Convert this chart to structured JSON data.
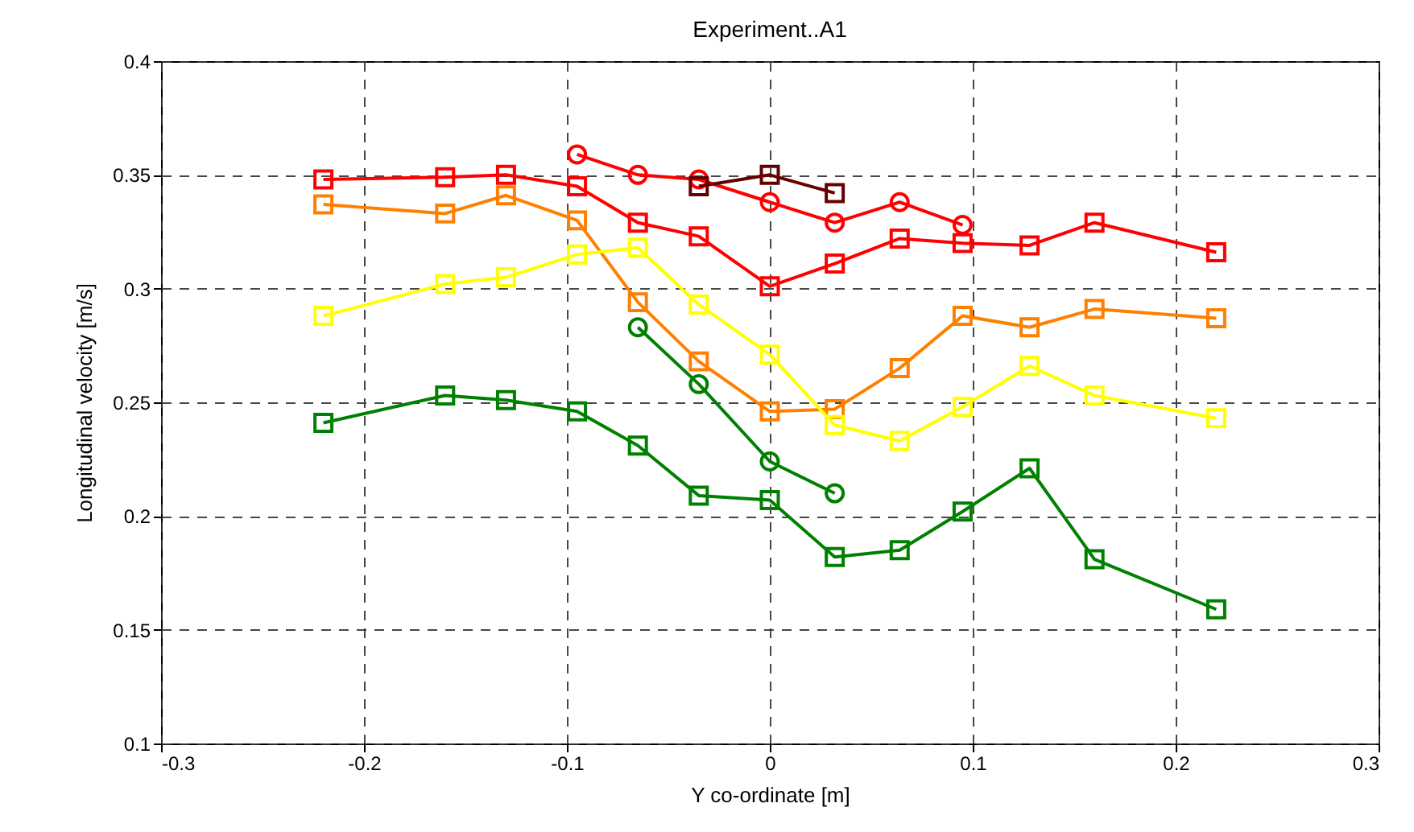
{
  "chart_data": {
    "type": "line",
    "title": "Experiment..A1",
    "xlabel": "Y co-ordinate [m]",
    "ylabel": "Longitudinal velocity [m/s]",
    "xlim": [
      -0.3,
      0.3
    ],
    "xticks": [
      -0.3,
      -0.2,
      -0.1,
      0,
      0.1,
      0.2,
      0.3
    ],
    "ylim": [
      0.1,
      0.4
    ],
    "yticks": [
      0.1,
      0.15,
      0.2,
      0.25,
      0.3,
      0.35,
      0.4
    ],
    "grid": true,
    "line_style": "solid",
    "series": [
      {
        "color": "#ff0000",
        "marker": "square",
        "x": [
          -0.22,
          -0.16,
          -0.13,
          -0.095,
          -0.065,
          -0.035,
          0,
          0.032,
          0.064,
          0.095,
          0.128,
          0.16,
          0.22
        ],
        "values": [
          0.348,
          0.349,
          0.35,
          0.345,
          0.329,
          0.323,
          0.301,
          0.311,
          0.322,
          0.32,
          0.319,
          0.329,
          0.316
        ]
      },
      {
        "color": "#ff8000",
        "marker": "square",
        "x": [
          -0.22,
          -0.16,
          -0.13,
          -0.095,
          -0.065,
          -0.035,
          0,
          0.032,
          0.064,
          0.095,
          0.128,
          0.16,
          0.22
        ],
        "values": [
          0.337,
          0.333,
          0.341,
          0.33,
          0.294,
          0.268,
          0.246,
          0.247,
          0.265,
          0.288,
          0.283,
          0.291,
          0.287
        ]
      },
      {
        "color": "#ffff00",
        "marker": "square",
        "x": [
          -0.22,
          -0.16,
          -0.13,
          -0.095,
          -0.065,
          -0.035,
          0,
          0.032,
          0.064,
          0.095,
          0.128,
          0.16,
          0.22
        ],
        "values": [
          0.288,
          0.302,
          0.305,
          0.315,
          0.318,
          0.293,
          0.271,
          0.24,
          0.233,
          0.248,
          0.266,
          0.253,
          0.243
        ]
      },
      {
        "color": "#008000",
        "marker": "square",
        "x": [
          -0.22,
          -0.16,
          -0.13,
          -0.095,
          -0.065,
          -0.035,
          0,
          0.032,
          0.064,
          0.095,
          0.128,
          0.16,
          0.22
        ],
        "values": [
          0.241,
          0.253,
          0.251,
          0.246,
          0.231,
          0.209,
          0.207,
          0.182,
          0.185,
          0.202,
          0.221,
          0.181,
          0.159
        ]
      },
      {
        "color": "#ff0000",
        "marker": "circle",
        "x": [
          -0.095,
          -0.065,
          -0.035,
          0,
          0.032,
          0.064,
          0.095
        ],
        "values": [
          0.359,
          0.35,
          0.348,
          0.338,
          0.329,
          0.338,
          0.328
        ]
      },
      {
        "color": "#660000",
        "marker": "square",
        "x": [
          -0.035,
          0,
          0.032
        ],
        "values": [
          0.345,
          0.35,
          0.342
        ]
      },
      {
        "color": "#008000",
        "marker": "circle",
        "x": [
          -0.065,
          -0.035,
          0,
          0.032
        ],
        "values": [
          0.283,
          0.258,
          0.224,
          0.21
        ]
      }
    ]
  }
}
